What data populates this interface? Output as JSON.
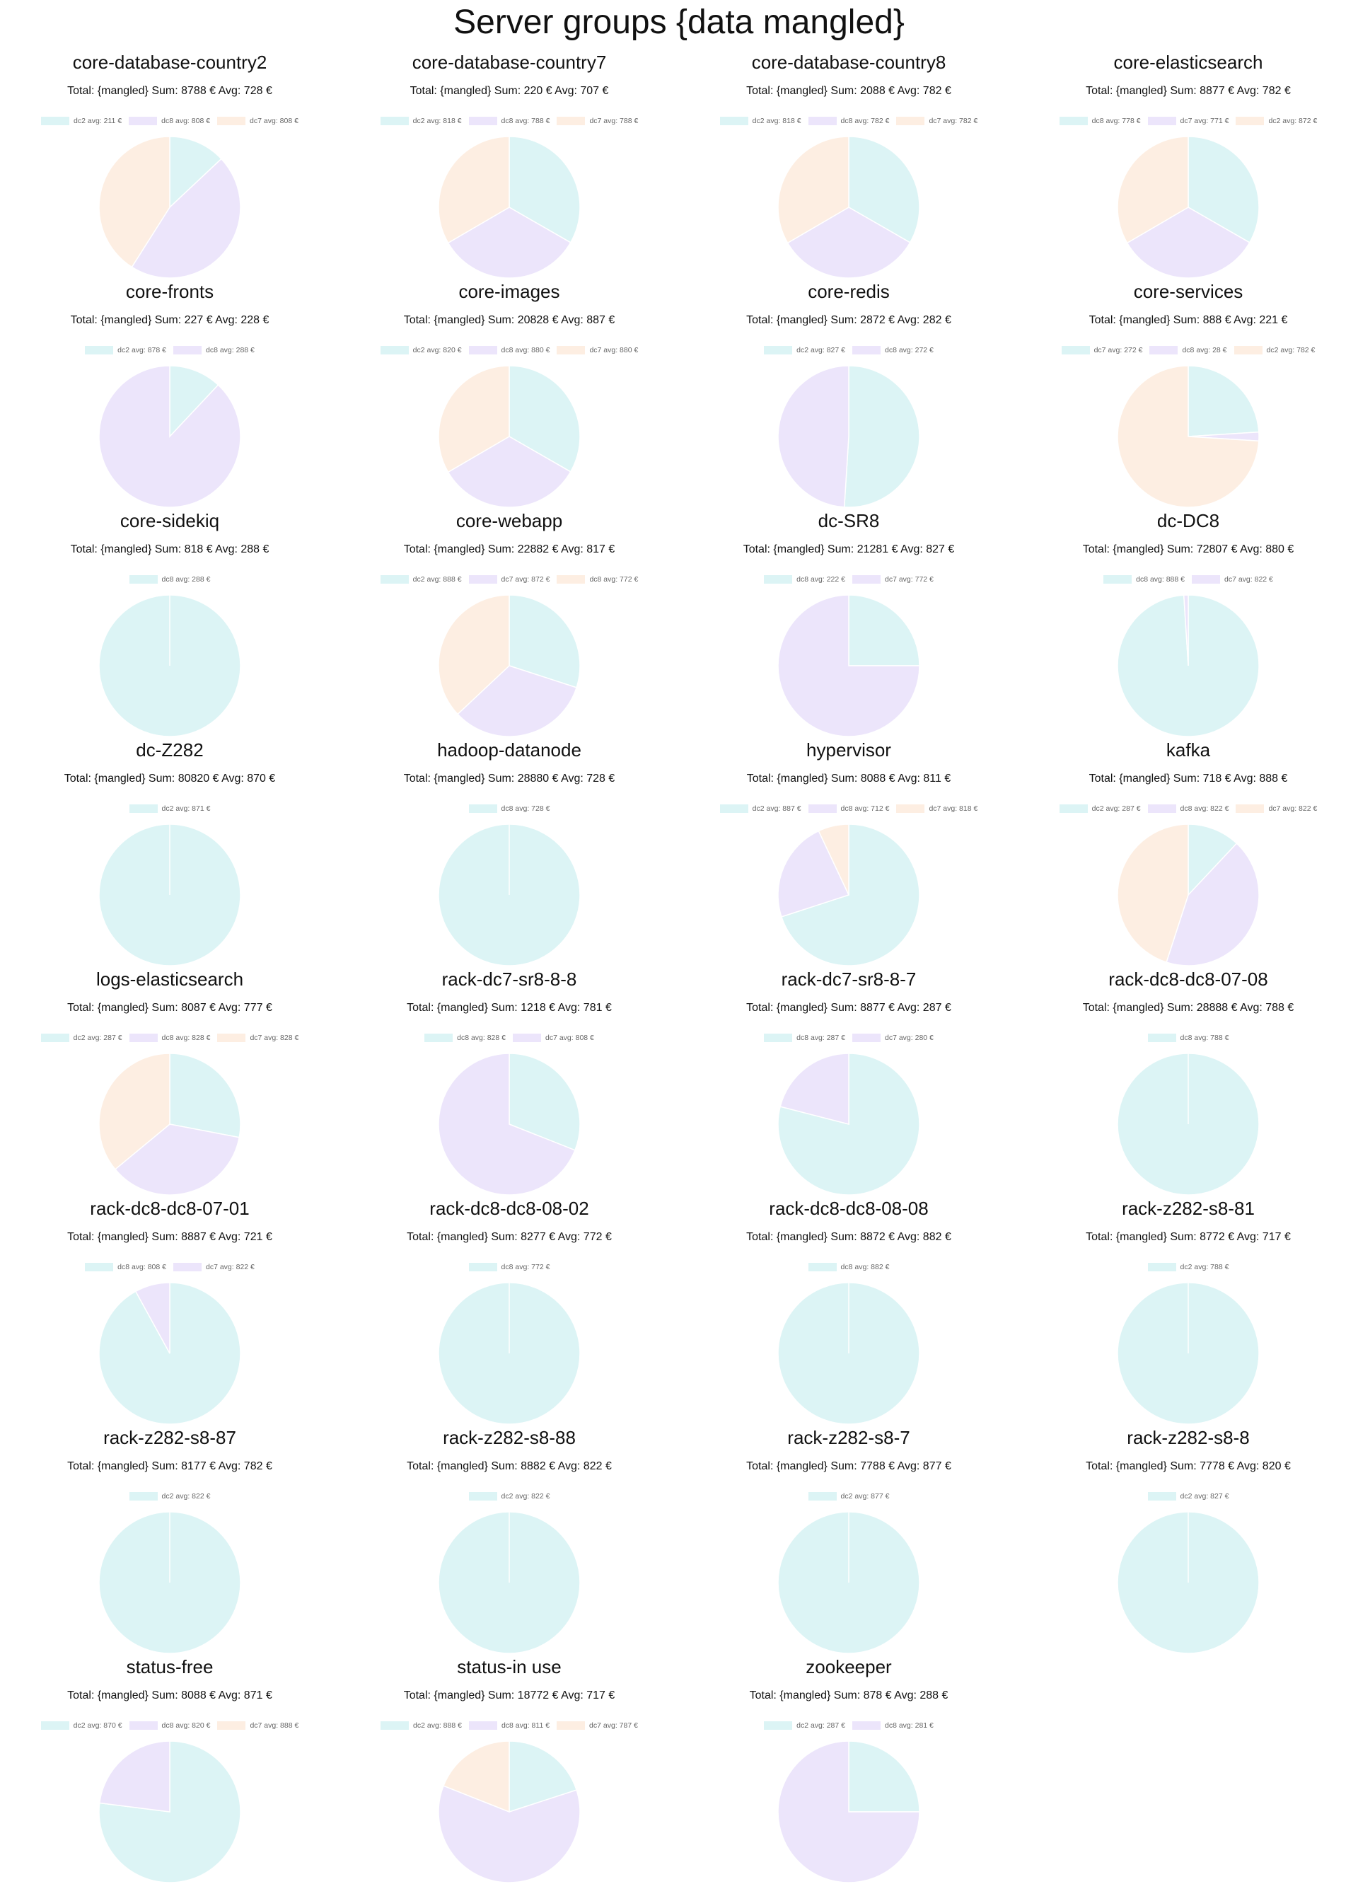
{
  "page": {
    "title": "Server groups {data mangled}"
  },
  "colors": {
    "dc2": "#dcf4f5",
    "dc8": "#ece5fb",
    "dc7": "#fdeee2"
  },
  "chart_data": [
    {
      "type": "pie",
      "title": "core-database-country2",
      "summary": "Total: {mangled} Sum: 8788 € Avg: 728 €",
      "slices": [
        {
          "label": "dc2 avg: 211 €",
          "key": "dc2",
          "value": 13
        },
        {
          "label": "dc8 avg: 808 €",
          "key": "dc8",
          "value": 46
        },
        {
          "label": "dc7 avg: 808 €",
          "key": "dc7",
          "value": 41
        }
      ]
    },
    {
      "type": "pie",
      "title": "core-database-country7",
      "summary": "Total: {mangled} Sum: 220 € Avg: 707 €",
      "slices": [
        {
          "label": "dc2 avg: 818 €",
          "key": "dc2",
          "value": 33.3
        },
        {
          "label": "dc8 avg: 788 €",
          "key": "dc8",
          "value": 33.3
        },
        {
          "label": "dc7 avg: 788 €",
          "key": "dc7",
          "value": 33.4
        }
      ]
    },
    {
      "type": "pie",
      "title": "core-database-country8",
      "summary": "Total: {mangled} Sum: 2088 € Avg: 782 €",
      "slices": [
        {
          "label": "dc2 avg: 818 €",
          "key": "dc2",
          "value": 33.3
        },
        {
          "label": "dc8 avg: 782 €",
          "key": "dc8",
          "value": 33.3
        },
        {
          "label": "dc7 avg: 782 €",
          "key": "dc7",
          "value": 33.4
        }
      ]
    },
    {
      "type": "pie",
      "title": "core-elasticsearch",
      "summary": "Total: {mangled} Sum: 8877 € Avg: 782 €",
      "slices": [
        {
          "label": "dc8 avg: 778 €",
          "key": "dc2",
          "value": 33.3
        },
        {
          "label": "dc7 avg: 771 €",
          "key": "dc8",
          "value": 33.3
        },
        {
          "label": "dc2 avg: 872 €",
          "key": "dc7",
          "value": 33.4
        }
      ]
    },
    {
      "type": "pie",
      "title": "core-fronts",
      "summary": "Total: {mangled} Sum: 227 € Avg: 228 €",
      "slices": [
        {
          "label": "dc2 avg: 878 €",
          "key": "dc2",
          "value": 12
        },
        {
          "label": "dc8 avg: 288 €",
          "key": "dc8",
          "value": 88
        }
      ]
    },
    {
      "type": "pie",
      "title": "core-images",
      "summary": "Total: {mangled} Sum: 20828 € Avg: 887 €",
      "slices": [
        {
          "label": "dc2 avg: 820 €",
          "key": "dc2",
          "value": 33.3
        },
        {
          "label": "dc8 avg: 880 €",
          "key": "dc8",
          "value": 33.3
        },
        {
          "label": "dc7 avg: 880 €",
          "key": "dc7",
          "value": 33.4
        }
      ]
    },
    {
      "type": "pie",
      "title": "core-redis",
      "summary": "Total: {mangled} Sum: 2872 € Avg: 282 €",
      "slices": [
        {
          "label": "dc2 avg: 827 €",
          "key": "dc2",
          "value": 51
        },
        {
          "label": "dc8 avg: 272 €",
          "key": "dc8",
          "value": 49
        }
      ]
    },
    {
      "type": "pie",
      "title": "core-services",
      "summary": "Total: {mangled} Sum: 888 € Avg: 221 €",
      "slices": [
        {
          "label": "dc7 avg: 272 €",
          "key": "dc2",
          "value": 24
        },
        {
          "label": "dc8 avg: 28 €",
          "key": "dc8",
          "value": 2
        },
        {
          "label": "dc2 avg: 782 €",
          "key": "dc7",
          "value": 74
        }
      ]
    },
    {
      "type": "pie",
      "title": "core-sidekiq",
      "summary": "Total: {mangled} Sum: 818 € Avg: 288 €",
      "slices": [
        {
          "label": "dc8 avg: 288 €",
          "key": "dc2",
          "value": 100
        }
      ]
    },
    {
      "type": "pie",
      "title": "core-webapp",
      "summary": "Total: {mangled} Sum: 22882 € Avg: 817 €",
      "slices": [
        {
          "label": "dc2 avg: 888 €",
          "key": "dc2",
          "value": 30
        },
        {
          "label": "dc7 avg: 872 €",
          "key": "dc8",
          "value": 33
        },
        {
          "label": "dc8 avg: 772 €",
          "key": "dc7",
          "value": 37
        }
      ]
    },
    {
      "type": "pie",
      "title": "dc-SR8",
      "summary": "Total: {mangled} Sum: 21281 € Avg: 827 €",
      "slices": [
        {
          "label": "dc8 avg: 222 €",
          "key": "dc2",
          "value": 25
        },
        {
          "label": "dc7 avg: 772 €",
          "key": "dc8",
          "value": 75
        }
      ]
    },
    {
      "type": "pie",
      "title": "dc-DC8",
      "summary": "Total: {mangled} Sum: 72807 € Avg: 880 €",
      "slices": [
        {
          "label": "dc8 avg: 888 €",
          "key": "dc2",
          "value": 99
        },
        {
          "label": "dc7 avg: 822 €",
          "key": "dc8",
          "value": 1
        }
      ]
    },
    {
      "type": "pie",
      "title": "dc-Z282",
      "summary": "Total: {mangled} Sum: 80820 € Avg: 870 €",
      "slices": [
        {
          "label": "dc2 avg: 871 €",
          "key": "dc2",
          "value": 100
        }
      ]
    },
    {
      "type": "pie",
      "title": "hadoop-datanode",
      "summary": "Total: {mangled} Sum: 28880 € Avg: 728 €",
      "slices": [
        {
          "label": "dc8 avg: 728 €",
          "key": "dc2",
          "value": 100
        }
      ]
    },
    {
      "type": "pie",
      "title": "hypervisor",
      "summary": "Total: {mangled} Sum: 8088 € Avg: 811 €",
      "slices": [
        {
          "label": "dc2 avg: 887 €",
          "key": "dc2",
          "value": 70
        },
        {
          "label": "dc8 avg: 712 €",
          "key": "dc8",
          "value": 23
        },
        {
          "label": "dc7 avg: 818 €",
          "key": "dc7",
          "value": 7
        }
      ]
    },
    {
      "type": "pie",
      "title": "kafka",
      "summary": "Total: {mangled} Sum: 718 € Avg: 888 €",
      "slices": [
        {
          "label": "dc2 avg: 287 €",
          "key": "dc2",
          "value": 12
        },
        {
          "label": "dc8 avg: 822 €",
          "key": "dc8",
          "value": 43
        },
        {
          "label": "dc7 avg: 822 €",
          "key": "dc7",
          "value": 45
        }
      ]
    },
    {
      "type": "pie",
      "title": "logs-elasticsearch",
      "summary": "Total: {mangled} Sum: 8087 € Avg: 777 €",
      "slices": [
        {
          "label": "dc2 avg: 287 €",
          "key": "dc2",
          "value": 28
        },
        {
          "label": "dc8 avg: 828 €",
          "key": "dc8",
          "value": 36
        },
        {
          "label": "dc7 avg: 828 €",
          "key": "dc7",
          "value": 36
        }
      ]
    },
    {
      "type": "pie",
      "title": "rack-dc7-sr8-8-8",
      "summary": "Total: {mangled} Sum: 1218 € Avg: 781 €",
      "slices": [
        {
          "label": "dc8 avg: 828 €",
          "key": "dc2",
          "value": 31
        },
        {
          "label": "dc7 avg: 808 €",
          "key": "dc8",
          "value": 69
        }
      ]
    },
    {
      "type": "pie",
      "title": "rack-dc7-sr8-8-7",
      "summary": "Total: {mangled} Sum: 8877 € Avg: 287 €",
      "slices": [
        {
          "label": "dc8 avg: 287 €",
          "key": "dc2",
          "value": 79
        },
        {
          "label": "dc7 avg: 280 €",
          "key": "dc8",
          "value": 21
        }
      ]
    },
    {
      "type": "pie",
      "title": "rack-dc8-dc8-07-08",
      "summary": "Total: {mangled} Sum: 28888 € Avg: 788 €",
      "slices": [
        {
          "label": "dc8 avg: 788 €",
          "key": "dc2",
          "value": 100
        }
      ]
    },
    {
      "type": "pie",
      "title": "rack-dc8-dc8-07-01",
      "summary": "Total: {mangled} Sum: 8887 € Avg: 721 €",
      "slices": [
        {
          "label": "dc8 avg: 808 €",
          "key": "dc2",
          "value": 92
        },
        {
          "label": "dc7 avg: 822 €",
          "key": "dc8",
          "value": 8
        }
      ]
    },
    {
      "type": "pie",
      "title": "rack-dc8-dc8-08-02",
      "summary": "Total: {mangled} Sum: 8277 € Avg: 772 €",
      "slices": [
        {
          "label": "dc8 avg: 772 €",
          "key": "dc2",
          "value": 100
        }
      ]
    },
    {
      "type": "pie",
      "title": "rack-dc8-dc8-08-08",
      "summary": "Total: {mangled} Sum: 8872 € Avg: 882 €",
      "slices": [
        {
          "label": "dc8 avg: 882 €",
          "key": "dc2",
          "value": 100
        }
      ]
    },
    {
      "type": "pie",
      "title": "rack-z282-s8-81",
      "summary": "Total: {mangled} Sum: 8772 € Avg: 717 €",
      "slices": [
        {
          "label": "dc2 avg: 788 €",
          "key": "dc2",
          "value": 100
        }
      ]
    },
    {
      "type": "pie",
      "title": "rack-z282-s8-87",
      "summary": "Total: {mangled} Sum: 8177 € Avg: 782 €",
      "slices": [
        {
          "label": "dc2 avg: 822 €",
          "key": "dc2",
          "value": 100
        }
      ]
    },
    {
      "type": "pie",
      "title": "rack-z282-s8-88",
      "summary": "Total: {mangled} Sum: 8882 € Avg: 822 €",
      "slices": [
        {
          "label": "dc2 avg: 822 €",
          "key": "dc2",
          "value": 100
        }
      ]
    },
    {
      "type": "pie",
      "title": "rack-z282-s8-7",
      "summary": "Total: {mangled} Sum: 7788 € Avg: 877 €",
      "slices": [
        {
          "label": "dc2 avg: 877 €",
          "key": "dc2",
          "value": 100
        }
      ]
    },
    {
      "type": "pie",
      "title": "rack-z282-s8-8",
      "summary": "Total: {mangled} Sum: 7778 € Avg: 820 €",
      "slices": [
        {
          "label": "dc2 avg: 827 €",
          "key": "dc2",
          "value": 100
        }
      ]
    },
    {
      "type": "pie",
      "title": "status-free",
      "summary": "Total: {mangled} Sum: 8088 € Avg: 871 €",
      "slices": [
        {
          "label": "dc2 avg: 870 €",
          "key": "dc2",
          "value": 77
        },
        {
          "label": "dc8 avg: 820 €",
          "key": "dc8",
          "value": 23
        },
        {
          "label": "dc7 avg: 888 €",
          "key": "dc7",
          "value": 0
        }
      ]
    },
    {
      "type": "pie",
      "title": "status-in use",
      "summary": "Total: {mangled} Sum: 18772 € Avg: 717 €",
      "slices": [
        {
          "label": "dc2 avg: 888 €",
          "key": "dc2",
          "value": 20
        },
        {
          "label": "dc8 avg: 811 €",
          "key": "dc8",
          "value": 61
        },
        {
          "label": "dc7 avg: 787 €",
          "key": "dc7",
          "value": 19
        }
      ]
    },
    {
      "type": "pie",
      "title": "zookeeper",
      "summary": "Total: {mangled} Sum: 878 € Avg: 288 €",
      "slices": [
        {
          "label": "dc2 avg: 287 €",
          "key": "dc2",
          "value": 25
        },
        {
          "label": "dc8 avg: 281 €",
          "key": "dc8",
          "value": 75
        }
      ]
    }
  ]
}
